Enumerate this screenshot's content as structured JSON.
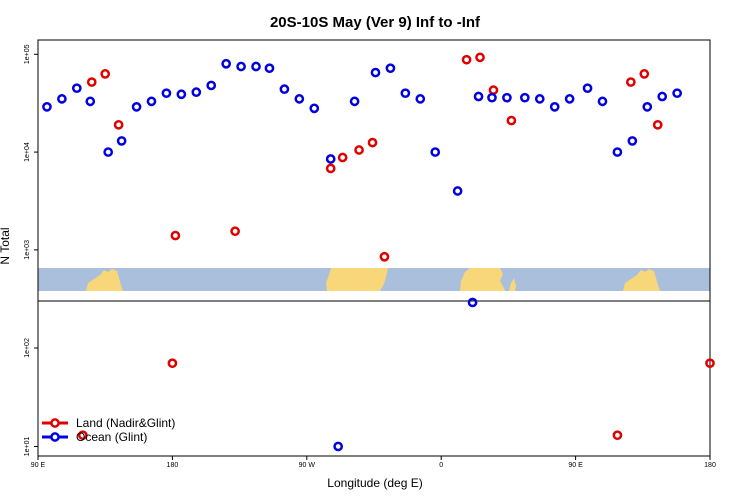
{
  "chart_data": {
    "type": "scatter",
    "title": "20S-10S May (Ver 9)   Inf to -Inf",
    "xlabel": "Longitude (deg E)",
    "ylabel": "N Total",
    "xticks": [
      {
        "value": 0,
        "label": "90 E"
      },
      {
        "value": 90,
        "label": "180"
      },
      {
        "value": 180,
        "label": "90 W"
      },
      {
        "value": 270,
        "label": "0"
      },
      {
        "value": 360,
        "label": "90 E"
      },
      {
        "value": 450,
        "label": "180"
      }
    ],
    "xlim": [
      0,
      450
    ],
    "yscale": "log",
    "ylim_upper": [
      300,
      140000
    ],
    "ylim_lower": [
      8,
      300
    ],
    "yticks_upper": [
      {
        "value": 1000,
        "label": "1e+03"
      },
      {
        "value": 10000,
        "label": "1e+04"
      },
      {
        "value": 100000,
        "label": "1e+05"
      }
    ],
    "yticks_lower": [
      {
        "value": 10,
        "label": "1e+01"
      },
      {
        "value": 100,
        "label": "1e+02"
      }
    ],
    "series": [
      {
        "name": "Land (Nadir&Glint)",
        "color": "#e00000",
        "points": [
          [
            36,
            52000
          ],
          [
            45,
            63000
          ],
          [
            54,
            19000
          ],
          [
            92,
            1400
          ],
          [
            132,
            1550
          ],
          [
            196,
            6800
          ],
          [
            204,
            8800
          ],
          [
            215,
            10500
          ],
          [
            224,
            12500
          ],
          [
            232,
            850
          ],
          [
            287,
            88000
          ],
          [
            296,
            93000
          ],
          [
            305,
            43000
          ],
          [
            317,
            21000
          ],
          [
            397,
            52000
          ],
          [
            406,
            63000
          ],
          [
            415,
            19000
          ],
          [
            90,
            70
          ],
          [
            30,
            13
          ],
          [
            388,
            13
          ],
          [
            450,
            70
          ]
        ]
      },
      {
        "name": "Ocean (Glint)",
        "color": "#0000e0",
        "points": [
          [
            6,
            29000
          ],
          [
            16,
            35000
          ],
          [
            26,
            45000
          ],
          [
            35,
            33000
          ],
          [
            47,
            10000
          ],
          [
            56,
            13000
          ],
          [
            66,
            29000
          ],
          [
            76,
            33000
          ],
          [
            86,
            40000
          ],
          [
            96,
            39000
          ],
          [
            106,
            41000
          ],
          [
            116,
            48000
          ],
          [
            126,
            80000
          ],
          [
            136,
            75000
          ],
          [
            146,
            75000
          ],
          [
            155,
            72000
          ],
          [
            165,
            44000
          ],
          [
            175,
            35000
          ],
          [
            185,
            28000
          ],
          [
            196,
            8500
          ],
          [
            212,
            33000
          ],
          [
            226,
            65000
          ],
          [
            236,
            72000
          ],
          [
            246,
            40000
          ],
          [
            256,
            35000
          ],
          [
            266,
            10000
          ],
          [
            281,
            4000
          ],
          [
            295,
            37000
          ],
          [
            304,
            36000
          ],
          [
            314,
            36000
          ],
          [
            326,
            36000
          ],
          [
            336,
            35000
          ],
          [
            346,
            29000
          ],
          [
            356,
            35000
          ],
          [
            368,
            45000
          ],
          [
            378,
            33000
          ],
          [
            388,
            10000
          ],
          [
            398,
            13000
          ],
          [
            408,
            29000
          ],
          [
            418,
            37000
          ],
          [
            428,
            40000
          ],
          [
            291,
            290
          ],
          [
            201,
            10
          ]
        ]
      }
    ],
    "legend": [
      {
        "label": "Land (Nadir&Glint)",
        "color": "#e00000"
      },
      {
        "label": "Ocean (Glint)",
        "color": "#0000e0"
      }
    ],
    "legend_position": "bottom-left"
  }
}
